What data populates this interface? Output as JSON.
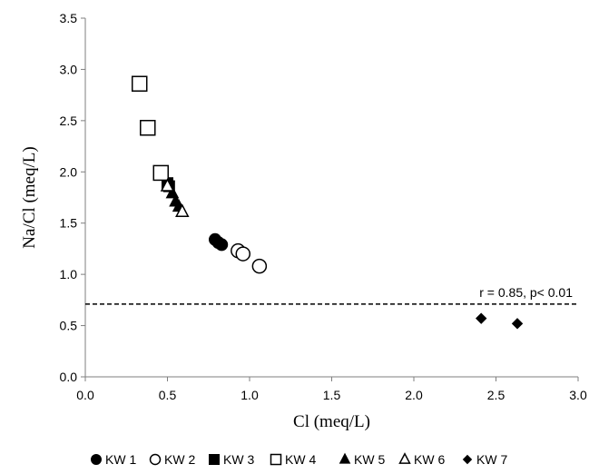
{
  "chart_data": {
    "type": "scatter",
    "xlabel": "Cl (meq/L)",
    "ylabel": "Na/Cl (meq/L)",
    "xlim": [
      0,
      3
    ],
    "ylim": [
      0,
      3.5
    ],
    "x_ticks": [
      "0.0",
      "0.5",
      "1.0",
      "1.5",
      "2.0",
      "2.5",
      "3.0"
    ],
    "y_ticks": [
      "0.0",
      "0.5",
      "1.0",
      "1.5",
      "2.0",
      "2.5",
      "3.0",
      "3.5"
    ],
    "grid": false,
    "legend_position": "bottom",
    "series": [
      {
        "name": "KW 1",
        "marker": "circle",
        "filled": true,
        "points": [
          [
            0.79,
            1.34
          ],
          [
            0.81,
            1.31
          ],
          [
            0.83,
            1.29
          ]
        ]
      },
      {
        "name": "KW 2",
        "marker": "circle",
        "filled": false,
        "points": [
          [
            0.93,
            1.23
          ],
          [
            0.96,
            1.2
          ],
          [
            1.06,
            1.08
          ]
        ]
      },
      {
        "name": "KW 3",
        "marker": "square",
        "filled": true,
        "points": [
          [
            0.5,
            1.89
          ],
          [
            0.51,
            1.86
          ]
        ]
      },
      {
        "name": "KW 4",
        "marker": "square",
        "filled": false,
        "points": [
          [
            0.33,
            2.86
          ],
          [
            0.38,
            2.43
          ],
          [
            0.46,
            1.99
          ]
        ]
      },
      {
        "name": "KW 5",
        "marker": "triangle",
        "filled": true,
        "points": [
          [
            0.53,
            1.79
          ],
          [
            0.55,
            1.71
          ],
          [
            0.57,
            1.66
          ]
        ]
      },
      {
        "name": "KW 6",
        "marker": "triangle",
        "filled": false,
        "points": [
          [
            0.5,
            1.86
          ],
          [
            0.59,
            1.61
          ]
        ]
      },
      {
        "name": "KW 7",
        "marker": "diamond",
        "filled": true,
        "points": [
          [
            2.41,
            0.57
          ],
          [
            2.63,
            0.52
          ]
        ]
      }
    ],
    "reference_line": {
      "y": 0.71,
      "style": "dashed"
    },
    "annotation": "r = 0.85, p< 0.01"
  }
}
